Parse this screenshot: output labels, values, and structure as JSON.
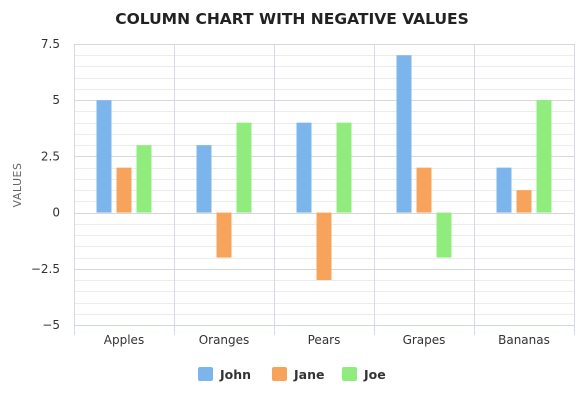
{
  "chart_data": {
    "type": "bar",
    "title": "COLUMN CHART WITH NEGATIVE VALUES",
    "xlabel": "",
    "ylabel": "VALUES",
    "categories": [
      "Apples",
      "Oranges",
      "Pears",
      "Grapes",
      "Bananas"
    ],
    "series": [
      {
        "name": "John",
        "values": [
          5,
          3,
          4,
          7,
          2
        ],
        "color": "#7cb5ec"
      },
      {
        "name": "Jane",
        "values": [
          2,
          -2,
          -3,
          2,
          1
        ],
        "color": "#f7a35c"
      },
      {
        "name": "Joe",
        "values": [
          3,
          4,
          4,
          -2,
          5
        ],
        "color": "#90ed7d"
      }
    ],
    "ylim": [
      -5,
      7.5
    ],
    "yticks": [
      -5,
      -2.5,
      0,
      2.5,
      5,
      7.5
    ],
    "ytick_labels": [
      "−5",
      "−2.5",
      "0",
      "2.5",
      "5",
      "7.5"
    ],
    "grid": true,
    "legend": "bottom-center"
  }
}
